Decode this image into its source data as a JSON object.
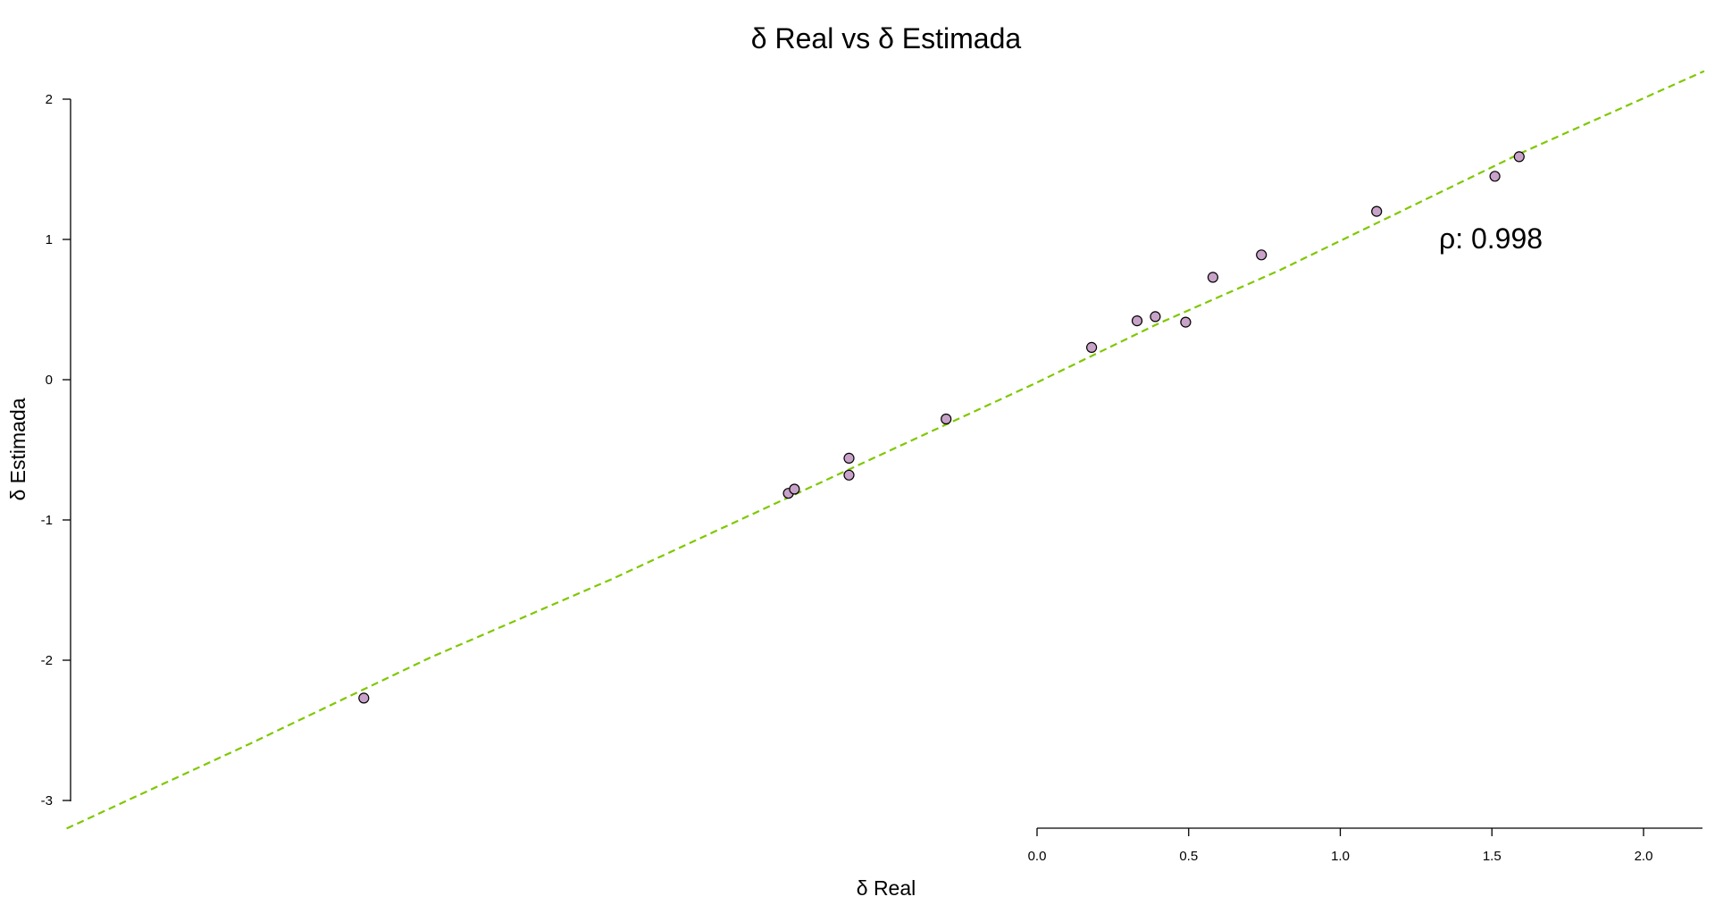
{
  "chart_data": {
    "type": "scatter",
    "title": "δ Real vs δ Estimada",
    "xlabel": "δ Real",
    "ylabel": "δ Estimada",
    "annotation": "ρ: 0.998",
    "xlim": [
      -3.2,
      2.2
    ],
    "ylim": [
      -3.2,
      2.2
    ],
    "x_ticks": [
      0.0,
      0.5,
      1.0,
      1.5,
      2.0
    ],
    "x_tick_labels": [
      "0.0",
      "0.5",
      "1.0",
      "1.5",
      "2.0"
    ],
    "y_ticks": [
      -3,
      -2,
      -1,
      0,
      1,
      2
    ],
    "y_tick_labels": [
      "-3",
      "-2",
      "-1",
      "0",
      "1",
      "2"
    ],
    "grid": false,
    "point_color": "#c8a2c8",
    "point_edge_color": "#000000",
    "line_color": "#7fc800",
    "series": [
      {
        "values_x": [
          -2.22,
          -0.82,
          -0.8,
          -0.62,
          -0.62,
          -0.3,
          0.18,
          0.33,
          0.39,
          0.49,
          0.58,
          0.74,
          1.12,
          1.51,
          1.59
        ],
        "values_y": [
          -2.27,
          -0.81,
          -0.78,
          -0.56,
          -0.68,
          -0.28,
          0.23,
          0.42,
          0.45,
          0.41,
          0.73,
          0.89,
          1.2,
          1.45,
          1.59
        ]
      }
    ],
    "fit_line": {
      "style": "dashed",
      "x": [
        -3.2,
        -2.6,
        -2.0,
        -1.4,
        -0.8,
        -0.4,
        0.0,
        0.4,
        0.8,
        1.2,
        1.6,
        2.2
      ],
      "y": [
        -3.2,
        -2.6,
        -1.98,
        -1.42,
        -0.82,
        -0.42,
        -0.02,
        0.4,
        0.78,
        1.2,
        1.62,
        2.2
      ]
    }
  }
}
